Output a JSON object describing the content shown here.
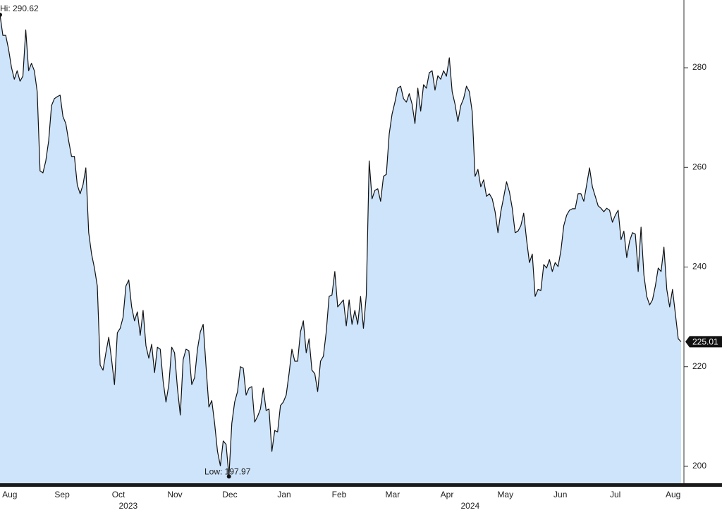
{
  "chart_data": {
    "type": "area",
    "series": [
      {
        "color": "#cde4fb",
        "line_color": "#111111",
        "axis": "y2",
        "values": [
          290.62,
          286.5,
          286.5,
          283.7,
          280.1,
          277.7,
          279.4,
          277.3,
          278.3,
          287.6,
          279.4,
          280.9,
          279.4,
          275.2,
          259.3,
          258.9,
          261.3,
          265.3,
          272.4,
          273.8,
          274.2,
          274.5,
          270.2,
          268.8,
          265.3,
          262.2,
          262.2,
          256.5,
          254.7,
          256.5,
          259.9,
          246.9,
          242.6,
          239.8,
          236.2,
          220.3,
          219.3,
          222.8,
          225.9,
          221.4,
          216.4,
          226.8,
          227.7,
          229.9,
          236.2,
          237.4,
          232.0,
          229.2,
          231.0,
          226.3,
          231.3,
          224.2,
          221.7,
          224.5,
          218.8,
          223.9,
          223.5,
          217.1,
          212.9,
          216.4,
          223.9,
          222.8,
          215.7,
          210.3,
          221.4,
          223.5,
          223.2,
          216.4,
          217.8,
          223.5,
          227.0,
          228.5,
          220.0,
          211.9,
          213.2,
          208.6,
          203.0,
          200.1,
          205.1,
          204.4,
          197.97,
          208.6,
          212.9,
          215.0,
          220.0,
          219.7,
          214.3,
          215.7,
          216.0,
          208.9,
          210.0,
          211.5,
          215.7,
          211.2,
          211.5,
          203.0,
          207.2,
          206.9,
          212.2,
          212.9,
          214.3,
          218.6,
          223.5,
          221.1,
          221.1,
          227.0,
          229.2,
          222.8,
          225.6,
          219.3,
          218.6,
          215.0,
          221.1,
          222.1,
          227.0,
          234.1,
          234.4,
          239.1,
          232.0,
          232.7,
          233.4,
          228.2,
          233.4,
          228.5,
          231.3,
          228.5,
          234.1,
          227.7,
          234.4,
          261.3,
          253.7,
          255.4,
          255.7,
          253.2,
          258.2,
          258.6,
          266.7,
          270.7,
          273.1,
          275.9,
          276.3,
          273.8,
          273.1,
          274.8,
          272.7,
          268.8,
          275.9,
          271.3,
          276.6,
          275.9,
          279.0,
          279.4,
          275.5,
          278.4,
          277.7,
          279.4,
          278.3,
          282.0,
          275.2,
          272.7,
          269.2,
          272.4,
          273.8,
          276.3,
          275.2,
          271.2,
          258.2,
          259.6,
          256.1,
          257.5,
          254.2,
          254.7,
          253.7,
          251.1,
          246.9,
          251.1,
          254.0,
          257.1,
          255.1,
          251.8,
          246.9,
          247.2,
          248.3,
          250.8,
          245.5,
          240.9,
          242.6,
          234.1,
          235.5,
          235.3,
          240.5,
          239.8,
          241.5,
          239.1,
          240.9,
          240.1,
          243.3,
          248.3,
          250.4,
          251.4,
          251.7,
          251.7,
          254.7,
          254.7,
          253.2,
          256.5,
          259.9,
          256.1,
          254.2,
          252.3,
          251.8,
          251.1,
          251.8,
          251.4,
          249.0,
          250.4,
          251.4,
          245.5,
          247.2,
          241.9,
          245.2,
          246.9,
          246.6,
          239.1,
          248.0,
          238.4,
          234.1,
          232.4,
          233.4,
          236.2,
          239.8,
          239.1,
          244.0,
          235.5,
          232.0,
          235.5,
          230.6,
          225.6,
          225.01
        ]
      }
    ],
    "xlim": [
      0,
      238
    ],
    "xticks": [
      {
        "value": 3.4,
        "label": "Aug"
      },
      {
        "value": 21.7,
        "label": "Sep"
      },
      {
        "value": 41.4,
        "label": "Oct"
      },
      {
        "value": 61.1,
        "label": "Nov"
      },
      {
        "value": 80.3,
        "label": "Dec"
      },
      {
        "value": 99.3,
        "label": "Jan"
      },
      {
        "value": 118.5,
        "label": "Feb"
      },
      {
        "value": 137.2,
        "label": "Mar"
      },
      {
        "value": 156.2,
        "label": "Apr"
      },
      {
        "value": 176.6,
        "label": "May"
      },
      {
        "value": 195.8,
        "label": "Jun"
      },
      {
        "value": 215.0,
        "label": "Jul"
      },
      {
        "value": 235.2,
        "label": "Aug"
      }
    ],
    "year_ticks": [
      {
        "value": 44.8,
        "label": "2023"
      },
      {
        "value": 164.3,
        "label": "2024"
      }
    ],
    "y2lim": [
      196.6,
      293.6
    ],
    "y2ticks": [
      200,
      220,
      240,
      260,
      280
    ],
    "annotations": [
      {
        "label": "Hi: 290.62",
        "index": 0,
        "anchor": "right"
      },
      {
        "label": "Low: 197.97",
        "index": 80,
        "anchor": "left"
      }
    ]
  }
}
